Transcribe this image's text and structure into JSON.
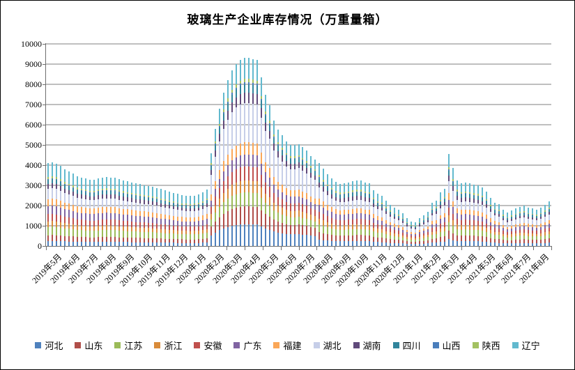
{
  "title": "玻璃生产企业库存情况（万重量箱）",
  "chart_data": {
    "type": "bar",
    "stacked": true,
    "title": "玻璃生产企业库存情况（万重量箱）",
    "unit": "万重量箱",
    "xlabel": "",
    "ylabel": "",
    "grid": true,
    "legend_position": "bottom",
    "axis": {
      "y_min": 0,
      "y_max": 10000,
      "y_step": 1000,
      "y_ticks": [
        "0",
        "1000",
        "2000",
        "3000",
        "4000",
        "5000",
        "6000",
        "7000",
        "8000",
        "9000",
        "10000"
      ]
    },
    "x_categories": [
      "2019年5月",
      "2019年6月",
      "2019年7月",
      "2019年8月",
      "2019年9月",
      "2019年10月",
      "2019年11月",
      "2019年12月",
      "2020年1月",
      "2020年2月",
      "2020年3月",
      "2020年4月",
      "2020年5月",
      "2020年6月",
      "2020年7月",
      "2020年8月",
      "2020年9月",
      "2020年10月",
      "2020年11月",
      "2020年12月",
      "2021年1月",
      "2021年2月",
      "2021年3月",
      "2021年4月",
      "2021年5月",
      "2021年6月",
      "2021年7月",
      "2021年8月"
    ],
    "weeks_per_month": [
      4,
      4,
      5,
      4,
      4,
      5,
      4,
      5,
      4,
      4,
      5,
      4,
      4,
      5,
      4,
      4,
      4,
      5,
      4,
      5,
      4,
      4,
      5,
      4,
      4,
      5,
      4,
      4
    ],
    "series": [
      {
        "key": "hebei",
        "name": "河北",
        "color": "#4F81BD"
      },
      {
        "key": "shandong",
        "name": "山东",
        "color": "#B04E49"
      },
      {
        "key": "jiangsu",
        "name": "江苏",
        "color": "#9BBB59"
      },
      {
        "key": "zhejiang",
        "name": "浙江",
        "color": "#D98B3A"
      },
      {
        "key": "anhui",
        "name": "安徽",
        "color": "#C0504D"
      },
      {
        "key": "guangdong",
        "name": "广东",
        "color": "#8064A2"
      },
      {
        "key": "fujian",
        "name": "福建",
        "color": "#FAA758"
      },
      {
        "key": "hubei",
        "name": "湖北",
        "color": "#C6CEE8"
      },
      {
        "key": "hunan",
        "name": "湖南",
        "color": "#604A7B"
      },
      {
        "key": "sichuan",
        "name": "四川",
        "color": "#31859C"
      },
      {
        "key": "shanxi",
        "name": "山西",
        "color": "#4A7EBB"
      },
      {
        "key": "shaanxi",
        "name": "陕西",
        "color": "#A3C161"
      },
      {
        "key": "liaoning",
        "name": "辽宁",
        "color": "#62B9CE"
      }
    ],
    "weekly_totals": [
      4100,
      4130,
      4080,
      3970,
      3790,
      3690,
      3590,
      3450,
      3400,
      3340,
      3280,
      3280,
      3340,
      3400,
      3420,
      3400,
      3380,
      3300,
      3250,
      3200,
      3150,
      3100,
      3060,
      3020,
      2980,
      2940,
      2880,
      2820,
      2760,
      2700,
      2640,
      2580,
      2530,
      2500,
      2480,
      2500,
      2550,
      2650,
      2800,
      4600,
      5800,
      6800,
      7600,
      8200,
      8700,
      9000,
      9200,
      9300,
      9300,
      9250,
      9200,
      8350,
      7480,
      6970,
      6200,
      5760,
      5480,
      5170,
      5000,
      5000,
      5050,
      4900,
      4720,
      4450,
      4280,
      4100,
      3830,
      3550,
      3350,
      3170,
      3080,
      3100,
      3150,
      3200,
      3250,
      3250,
      3150,
      3100,
      2760,
      2590,
      2480,
      2240,
      2050,
      1900,
      1790,
      1620,
      1380,
      1210,
      1170,
      1380,
      1520,
      1690,
      2140,
      2240,
      2660,
      2830,
      4550,
      3860,
      3240,
      3100,
      3150,
      3100,
      3050,
      3000,
      2900,
      2700,
      2380,
      2140,
      2070,
      1800,
      1650,
      1750,
      1850,
      1950,
      2000,
      1900,
      1850,
      1800,
      1900,
      2050,
      2200
    ],
    "share_profiles": {
      "phase_2019": [
        0.06,
        0.07,
        0.1,
        0.068,
        0.086,
        0.098,
        0.086,
        0.122,
        0.061,
        0.049,
        0.012,
        0.024,
        0.164
      ],
      "phase_covid": [
        0.115,
        0.095,
        0.075,
        0.062,
        0.075,
        0.065,
        0.065,
        0.21,
        0.055,
        0.045,
        0.01,
        0.018,
        0.11
      ],
      "phase_2021": [
        0.075,
        0.09,
        0.095,
        0.07,
        0.085,
        0.085,
        0.075,
        0.13,
        0.06,
        0.055,
        0.012,
        0.028,
        0.14
      ]
    },
    "phases": [
      {
        "from": 0,
        "to": 38,
        "profile": "phase_2019"
      },
      {
        "from": 39,
        "to": 64,
        "profile": "phase_covid"
      },
      {
        "from": 65,
        "to": 120,
        "profile": "phase_2021"
      }
    ]
  }
}
